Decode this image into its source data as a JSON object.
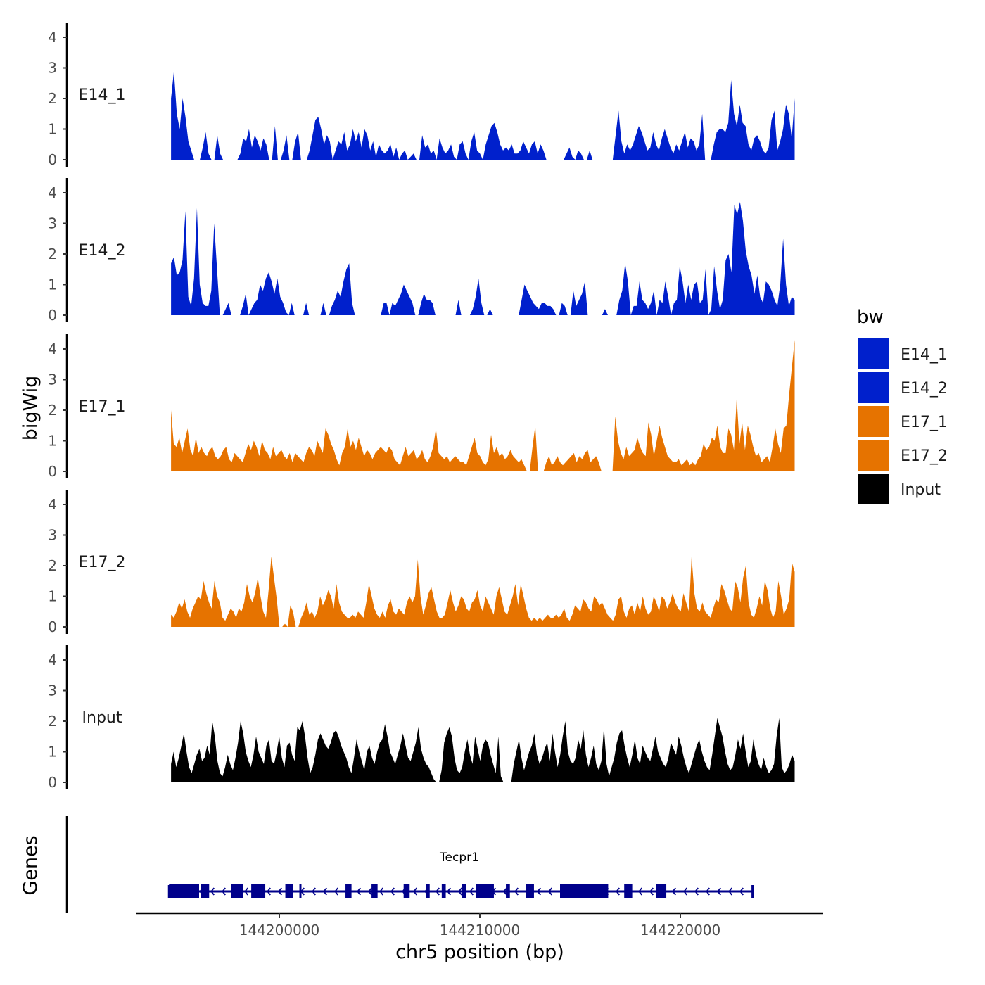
{
  "chart_data": {
    "type": "area",
    "title": "",
    "ylabel": "bigWig",
    "xlabel": "chr5 position (bp)",
    "xlim": [
      144193000,
      144227000
    ],
    "ylim": [
      0,
      4.4
    ],
    "y_ticks": [
      0,
      1,
      2,
      3,
      4
    ],
    "x_ticks": [
      144200000,
      144210000,
      144220000
    ],
    "x_tick_labels": [
      "144200000",
      "144210000",
      "144220000"
    ],
    "colors": {
      "E14": "#0020CC",
      "E17": "#E67300",
      "Input": "#000000",
      "gene": "#00008B"
    },
    "legend": {
      "title": "bw",
      "position": "right",
      "entries": [
        {
          "label": "E14_1",
          "color": "#0020CC"
        },
        {
          "label": "E14_2",
          "color": "#0020CC"
        },
        {
          "label": "E17_1",
          "color": "#E67300"
        },
        {
          "label": "E17_2",
          "color": "#E67300"
        },
        {
          "label": "Input",
          "color": "#000000"
        }
      ]
    },
    "x_range": [
      144194600,
      144225700
    ],
    "series": [
      {
        "name": "E14_1",
        "color": "#0020CC",
        "values": [
          2.0,
          2.9,
          1.5,
          1.0,
          2.0,
          1.4,
          0.6,
          0.3,
          0,
          0,
          0,
          0.4,
          0.9,
          0.2,
          0,
          0,
          0.8,
          0.2,
          0,
          0,
          0,
          0,
          0,
          0,
          0.2,
          0.7,
          0.6,
          1.0,
          0.4,
          0.8,
          0.6,
          0.3,
          0.7,
          0.5,
          0,
          0,
          1.1,
          0,
          0,
          0.3,
          0.8,
          0,
          0,
          0.6,
          0.9,
          0,
          0,
          0,
          0.3,
          0.8,
          1.3,
          1.4,
          1.0,
          0.5,
          0.8,
          0.6,
          0,
          0.3,
          0.6,
          0.5,
          0.9,
          0.3,
          0.5,
          1.0,
          0.6,
          0.9,
          0.4,
          1.0,
          0.8,
          0.3,
          0.6,
          0.1,
          0.5,
          0.3,
          0.2,
          0.3,
          0.5,
          0.1,
          0.4,
          0,
          0.2,
          0.3,
          0,
          0.1,
          0.2,
          0,
          0,
          0.8,
          0.4,
          0.5,
          0.2,
          0.3,
          0,
          0.7,
          0.4,
          0.2,
          0.3,
          0.5,
          0.1,
          0,
          0.5,
          0.6,
          0.2,
          0,
          0.6,
          0.9,
          0.3,
          0.2,
          0,
          0.5,
          0.8,
          1.1,
          1.2,
          0.9,
          0.5,
          0.3,
          0.4,
          0.3,
          0.5,
          0.2,
          0.2,
          0.3,
          0.6,
          0.4,
          0.2,
          0.5,
          0.6,
          0.2,
          0.5,
          0.3,
          0,
          0,
          0,
          0,
          0,
          0,
          0,
          0.2,
          0.4,
          0.1,
          0,
          0.3,
          0.2,
          0,
          0,
          0.3,
          0,
          0,
          0,
          0,
          0,
          0,
          0,
          0,
          0.8,
          1.6,
          0.6,
          0.2,
          0.5,
          0.3,
          0.5,
          0.8,
          1.1,
          0.9,
          0.6,
          0.3,
          0.4,
          0.9,
          0.5,
          0.3,
          0.7,
          1.0,
          0.7,
          0.4,
          0.2,
          0.5,
          0.3,
          0.6,
          0.9,
          0.4,
          0.7,
          0.6,
          0.3,
          0.5,
          1.5,
          0,
          0,
          0,
          0.5,
          0.9,
          1.0,
          1.0,
          0.9,
          1.2,
          2.6,
          1.5,
          1.1,
          1.8,
          1.2,
          1.1,
          0.5,
          0.3,
          0.7,
          0.8,
          0.6,
          0.3,
          0.2,
          0.4,
          1.3,
          1.6,
          0.3,
          0.6,
          1.0,
          1.8,
          1.5,
          0.7,
          2.0
        ]
      },
      {
        "name": "E14_2",
        "color": "#0020CC",
        "values": [
          1.7,
          1.9,
          1.3,
          1.4,
          1.8,
          3.4,
          0.6,
          0.3,
          1.2,
          3.5,
          1.0,
          0.4,
          0.3,
          0.3,
          0.8,
          3.0,
          1.5,
          0,
          0,
          0.2,
          0.4,
          0,
          0,
          0,
          0,
          0.3,
          0.7,
          0,
          0.2,
          0.4,
          0.5,
          1.0,
          0.8,
          1.2,
          1.4,
          1.1,
          0.7,
          1.2,
          0.6,
          0.4,
          0.1,
          0,
          0.4,
          0,
          0,
          0,
          0,
          0.4,
          0,
          0,
          0,
          0,
          0,
          0.4,
          0,
          0,
          0.3,
          0.5,
          0.8,
          0.6,
          1.1,
          1.5,
          1.7,
          0.4,
          0,
          0,
          0,
          0,
          0,
          0,
          0,
          0,
          0,
          0,
          0.4,
          0.4,
          0,
          0.4,
          0.3,
          0.5,
          0.7,
          1.0,
          0.8,
          0.6,
          0.4,
          0,
          0,
          0.4,
          0.7,
          0.5,
          0.5,
          0.4,
          0,
          0,
          0,
          0,
          0,
          0,
          0,
          0,
          0.5,
          0,
          0,
          0,
          0,
          0.2,
          0.6,
          1.2,
          0.4,
          0,
          0,
          0.2,
          0,
          0,
          0,
          0,
          0,
          0,
          0,
          0,
          0,
          0,
          0.5,
          1.0,
          0.8,
          0.6,
          0.4,
          0.3,
          0.2,
          0.4,
          0.4,
          0.3,
          0.3,
          0.2,
          0,
          0,
          0.4,
          0.3,
          0,
          0,
          0.8,
          0.3,
          0.5,
          0.7,
          1.1,
          0,
          0,
          0,
          0,
          0,
          0,
          0.2,
          0,
          0,
          0,
          0,
          0.5,
          0.8,
          1.7,
          1.1,
          0,
          0.3,
          0.3,
          1.1,
          0.5,
          0.4,
          0.2,
          0.4,
          0.8,
          0,
          0.5,
          0.4,
          1.1,
          0.6,
          0,
          0.4,
          0.5,
          1.6,
          1.1,
          0.4,
          1.0,
          0.5,
          1.0,
          1.1,
          0.4,
          0.5,
          1.5,
          0,
          0.2,
          1.6,
          0.8,
          0.2,
          0.5,
          1.8,
          2.0,
          1.4,
          3.6,
          3.3,
          3.7,
          3.1,
          2.1,
          1.6,
          1.3,
          0.7,
          1.3,
          0.6,
          0.4,
          1.1,
          1.0,
          0.8,
          0.5,
          0.3,
          1.0,
          2.5,
          1.0,
          0.3,
          0.6,
          0.5
        ]
      },
      {
        "name": "E17_1",
        "color": "#E67300",
        "values": [
          2.0,
          0.9,
          0.8,
          1.1,
          0.6,
          1.0,
          1.4,
          0.7,
          0.5,
          1.1,
          0.6,
          0.8,
          0.6,
          0.5,
          0.7,
          0.8,
          0.5,
          0.4,
          0.5,
          0.7,
          0.8,
          0.4,
          0.3,
          0.6,
          0.5,
          0.4,
          0.3,
          0.6,
          0.9,
          0.7,
          1.0,
          0.8,
          0.5,
          1.0,
          0.7,
          0.6,
          0.4,
          0.8,
          0.5,
          0.6,
          0.7,
          0.5,
          0.4,
          0.6,
          0.3,
          0.6,
          0.5,
          0.4,
          0.3,
          0.6,
          0.8,
          0.7,
          0.5,
          1.0,
          0.8,
          0.6,
          1.4,
          1.2,
          0.9,
          0.7,
          0.4,
          0.2,
          0.6,
          0.8,
          1.4,
          0.8,
          1.0,
          0.7,
          1.1,
          0.8,
          0.5,
          0.7,
          0.6,
          0.4,
          0.6,
          0.7,
          0.8,
          0.7,
          0.6,
          0.8,
          0.7,
          0.4,
          0.3,
          0.2,
          0.5,
          0.8,
          0.5,
          0.6,
          0.7,
          0.4,
          0.5,
          0.7,
          0.4,
          0.3,
          0.5,
          0.8,
          1.4,
          0.6,
          0.5,
          0.4,
          0.5,
          0.3,
          0.4,
          0.5,
          0.4,
          0.3,
          0.3,
          0.2,
          0.5,
          0.8,
          1.1,
          0.6,
          0.5,
          0.3,
          0.2,
          0.4,
          1.2,
          0.6,
          0.8,
          0.5,
          0.6,
          0.4,
          0.5,
          0.7,
          0.5,
          0.4,
          0.3,
          0.4,
          0.2,
          0,
          0,
          0.8,
          1.5,
          0,
          0,
          0,
          0.3,
          0.5,
          0.2,
          0.3,
          0.5,
          0.3,
          0.2,
          0.3,
          0.4,
          0.5,
          0.6,
          0.3,
          0.5,
          0.4,
          0.6,
          0.7,
          0.3,
          0.4,
          0.5,
          0.3,
          0,
          0,
          0,
          0,
          0,
          1.8,
          1.0,
          0.6,
          0.4,
          0.8,
          0.5,
          0.6,
          0.7,
          1.1,
          0.8,
          0.6,
          0.5,
          1.6,
          1.2,
          0.5,
          1.0,
          1.5,
          1.1,
          0.8,
          0.5,
          0.4,
          0.3,
          0.3,
          0.4,
          0.2,
          0.3,
          0.4,
          0.2,
          0.3,
          0.2,
          0.4,
          0.5,
          0.9,
          0.7,
          0.8,
          1.1,
          1.0,
          1.5,
          0.8,
          0.6,
          0.6,
          1.4,
          1.2,
          0.7,
          2.4,
          0.9,
          1.6,
          0.7,
          1.5,
          1.2,
          0.8,
          0.5,
          0.6,
          0.3,
          0.4,
          0.5,
          0.3,
          0.8,
          1.4,
          0.9,
          0.6,
          1.4,
          1.5,
          2.5,
          3.4,
          4.3
        ]
      },
      {
        "name": "E17_2",
        "color": "#E67300",
        "values": [
          0.4,
          0.3,
          0.5,
          0.8,
          0.6,
          0.9,
          0.5,
          0.3,
          0.6,
          0.8,
          1.0,
          0.9,
          1.5,
          1.1,
          0.8,
          0.6,
          1.5,
          1.0,
          0.8,
          0.3,
          0.2,
          0.4,
          0.6,
          0.5,
          0.3,
          0.6,
          0.5,
          0.8,
          1.4,
          1.0,
          0.8,
          1.1,
          1.6,
          1.0,
          0.5,
          0.3,
          1.2,
          2.3,
          1.6,
          0.9,
          0,
          0,
          0.1,
          0,
          0.7,
          0.5,
          0,
          0,
          0.3,
          0.5,
          0.8,
          0.4,
          0.5,
          0.3,
          0.5,
          1.0,
          0.7,
          0.9,
          1.2,
          1.0,
          0.6,
          1.4,
          0.8,
          0.5,
          0.4,
          0.3,
          0.3,
          0.4,
          0.3,
          0.5,
          0.4,
          0.3,
          0.8,
          1.4,
          1.0,
          0.6,
          0.4,
          0.3,
          0.5,
          0.3,
          0.7,
          0.9,
          0.5,
          0.4,
          0.6,
          0.5,
          0.4,
          0.8,
          1.0,
          0.8,
          1.0,
          2.2,
          1.0,
          0.4,
          0.7,
          1.1,
          1.3,
          0.9,
          0.5,
          0.3,
          0.3,
          0.4,
          0.8,
          1.2,
          0.8,
          0.5,
          0.7,
          1.0,
          0.9,
          0.6,
          0.5,
          0.8,
          0.9,
          1.2,
          0.7,
          0.5,
          1.0,
          0.8,
          0.6,
          0.4,
          1.0,
          1.3,
          0.9,
          0.5,
          0.4,
          0.7,
          1.0,
          1.4,
          0.7,
          1.4,
          1.0,
          0.6,
          0.3,
          0.2,
          0.3,
          0.2,
          0.3,
          0.2,
          0.3,
          0.4,
          0.3,
          0.3,
          0.4,
          0.3,
          0.4,
          0.6,
          0.3,
          0.2,
          0.4,
          0.7,
          0.6,
          0.5,
          0.9,
          0.8,
          0.6,
          0.5,
          1.0,
          0.9,
          0.7,
          0.8,
          0.6,
          0.4,
          0.3,
          0.2,
          0.4,
          0.9,
          1.0,
          0.5,
          0.3,
          0.6,
          0.7,
          0.4,
          0.8,
          0.5,
          1.0,
          0.6,
          0.4,
          0.5,
          1.0,
          0.8,
          0.5,
          1.0,
          0.9,
          0.6,
          0.8,
          1.1,
          0.8,
          0.6,
          0.5,
          1.1,
          0.8,
          0.5,
          2.3,
          1.1,
          0.6,
          0.5,
          0.8,
          0.5,
          0.4,
          0.3,
          0.6,
          0.9,
          0.8,
          1.4,
          1.2,
          0.9,
          0.6,
          0.5,
          1.5,
          1.3,
          0.8,
          1.6,
          2.0,
          0.8,
          0.4,
          0.3,
          0.6,
          1.0,
          0.7,
          1.5,
          1.2,
          0.6,
          0.3,
          0.5,
          1.5,
          1.0,
          0.4,
          0.6,
          0.9,
          2.1,
          1.8
        ]
      },
      {
        "name": "Input",
        "color": "#000000",
        "values": [
          0.6,
          1.0,
          0.5,
          0.8,
          1.2,
          1.6,
          1.0,
          0.5,
          0.3,
          0.6,
          0.9,
          1.1,
          0.7,
          0.8,
          1.2,
          0.9,
          2.0,
          1.5,
          0.7,
          0.3,
          0.2,
          0.5,
          0.9,
          0.6,
          0.4,
          0.8,
          1.3,
          2.0,
          1.6,
          1.0,
          0.7,
          0.5,
          0.9,
          1.5,
          1.0,
          0.8,
          0.6,
          1.2,
          1.4,
          0.7,
          0.6,
          1.0,
          1.5,
          0.8,
          0.5,
          1.2,
          1.3,
          0.9,
          0.7,
          1.8,
          1.7,
          2.0,
          1.5,
          0.8,
          0.3,
          0.5,
          0.9,
          1.4,
          1.6,
          1.4,
          1.2,
          1.1,
          1.3,
          1.6,
          1.7,
          1.5,
          1.2,
          1.0,
          0.8,
          0.5,
          0.3,
          0.8,
          1.4,
          1.0,
          0.7,
          0.4,
          1.0,
          1.2,
          0.8,
          0.6,
          1.0,
          1.3,
          1.4,
          1.9,
          1.5,
          1.0,
          0.8,
          0.6,
          0.9,
          1.2,
          1.6,
          1.2,
          0.8,
          0.7,
          1.0,
          1.3,
          1.8,
          1.1,
          0.8,
          0.6,
          0.5,
          0.3,
          0.1,
          0,
          0,
          0.4,
          1.3,
          1.6,
          1.8,
          1.5,
          0.8,
          0.4,
          0.3,
          0.5,
          1.0,
          1.4,
          0.9,
          0.6,
          1.5,
          1.1,
          0.7,
          1.2,
          1.4,
          1.3,
          0.9,
          0.6,
          0.3,
          1.5,
          0.2,
          0,
          0,
          0,
          0,
          0.6,
          1.0,
          1.4,
          0.8,
          0.4,
          0.7,
          1.0,
          1.2,
          1.6,
          0.9,
          0.6,
          0.8,
          1.1,
          1.3,
          0.7,
          1.6,
          1.0,
          0.5,
          0.9,
          1.5,
          2.0,
          1.0,
          0.7,
          0.6,
          0.8,
          1.4,
          1.1,
          1.7,
          0.9,
          0.5,
          0.8,
          1.2,
          0.6,
          0.4,
          0.7,
          1.8,
          0.6,
          0.2,
          0.5,
          0.8,
          1.3,
          1.6,
          1.7,
          1.2,
          0.8,
          0.5,
          0.9,
          1.4,
          0.8,
          0.6,
          1.2,
          1.0,
          0.8,
          0.7,
          1.1,
          1.5,
          1.0,
          0.8,
          0.6,
          0.5,
          0.8,
          1.3,
          1.1,
          0.9,
          1.5,
          1.2,
          0.8,
          0.5,
          0.3,
          0.6,
          0.9,
          1.2,
          1.4,
          1.0,
          0.7,
          0.5,
          0.4,
          0.9,
          1.5,
          2.1,
          1.8,
          1.5,
          1.0,
          0.6,
          0.4,
          0.5,
          0.9,
          1.4,
          1.1,
          1.6,
          1.0,
          0.5,
          0.7,
          1.4,
          0.9,
          0.6,
          0.4,
          0.8,
          0.5,
          0.3,
          0.4,
          0.6,
          1.5,
          2.1,
          0.5,
          0.3,
          0.4,
          0.6,
          0.9,
          0.7
        ]
      }
    ],
    "gene_track": {
      "ylabel": "Genes",
      "gene": "Tecpr1",
      "span": [
        144194500,
        144223600
      ],
      "strand": "-",
      "exons": [
        [
          144194500,
          144196000
        ],
        [
          144196100,
          144196500
        ],
        [
          144197600,
          144198200
        ],
        [
          144198600,
          144199300
        ],
        [
          144200300,
          144200700
        ],
        [
          144201000,
          144201100
        ],
        [
          144203300,
          144203600
        ],
        [
          144204600,
          144204900
        ],
        [
          144206200,
          144206500
        ],
        [
          144207300,
          144207500
        ],
        [
          144208100,
          144208300
        ],
        [
          144209100,
          144209300
        ],
        [
          144209800,
          144210700
        ],
        [
          144211300,
          144211500
        ],
        [
          144212300,
          144212700
        ],
        [
          144214000,
          144215600
        ],
        [
          144215600,
          144216400
        ],
        [
          144217200,
          144217600
        ],
        [
          144218800,
          144219300
        ]
      ]
    }
  }
}
